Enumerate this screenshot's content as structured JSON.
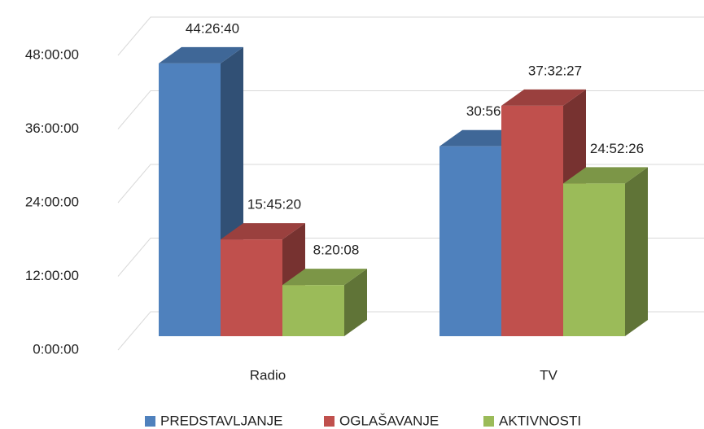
{
  "chart_data": {
    "type": "bar3d",
    "categories": [
      "Radio",
      "TV"
    ],
    "series": [
      {
        "name": "PREDSTAVLJANJE",
        "color": "#4f81bd",
        "values": [
          160000,
          111361
        ],
        "value_labels": [
          "44:26:40",
          "30:56:01"
        ]
      },
      {
        "name": "OGLAŠAVANJE",
        "color": "#c0504d",
        "values": [
          56720,
          135147
        ],
        "value_labels": [
          "15:45:20",
          "37:32:27"
        ]
      },
      {
        "name": "AKTIVNOSTI",
        "color": "#9bbb59",
        "values": [
          30008,
          89546
        ],
        "value_labels": [
          "8:20:08",
          "24:52:26"
        ]
      }
    ],
    "ylim": [
      0,
      172800
    ],
    "yticks": [
      {
        "value": 0,
        "label": "0:00:00"
      },
      {
        "value": 43200,
        "label": "12:00:00"
      },
      {
        "value": 86400,
        "label": "24:00:00"
      },
      {
        "value": 129600,
        "label": "36:00:00"
      },
      {
        "value": 172800,
        "label": "48:00:00"
      }
    ],
    "grid": true,
    "legend": "bottom"
  }
}
